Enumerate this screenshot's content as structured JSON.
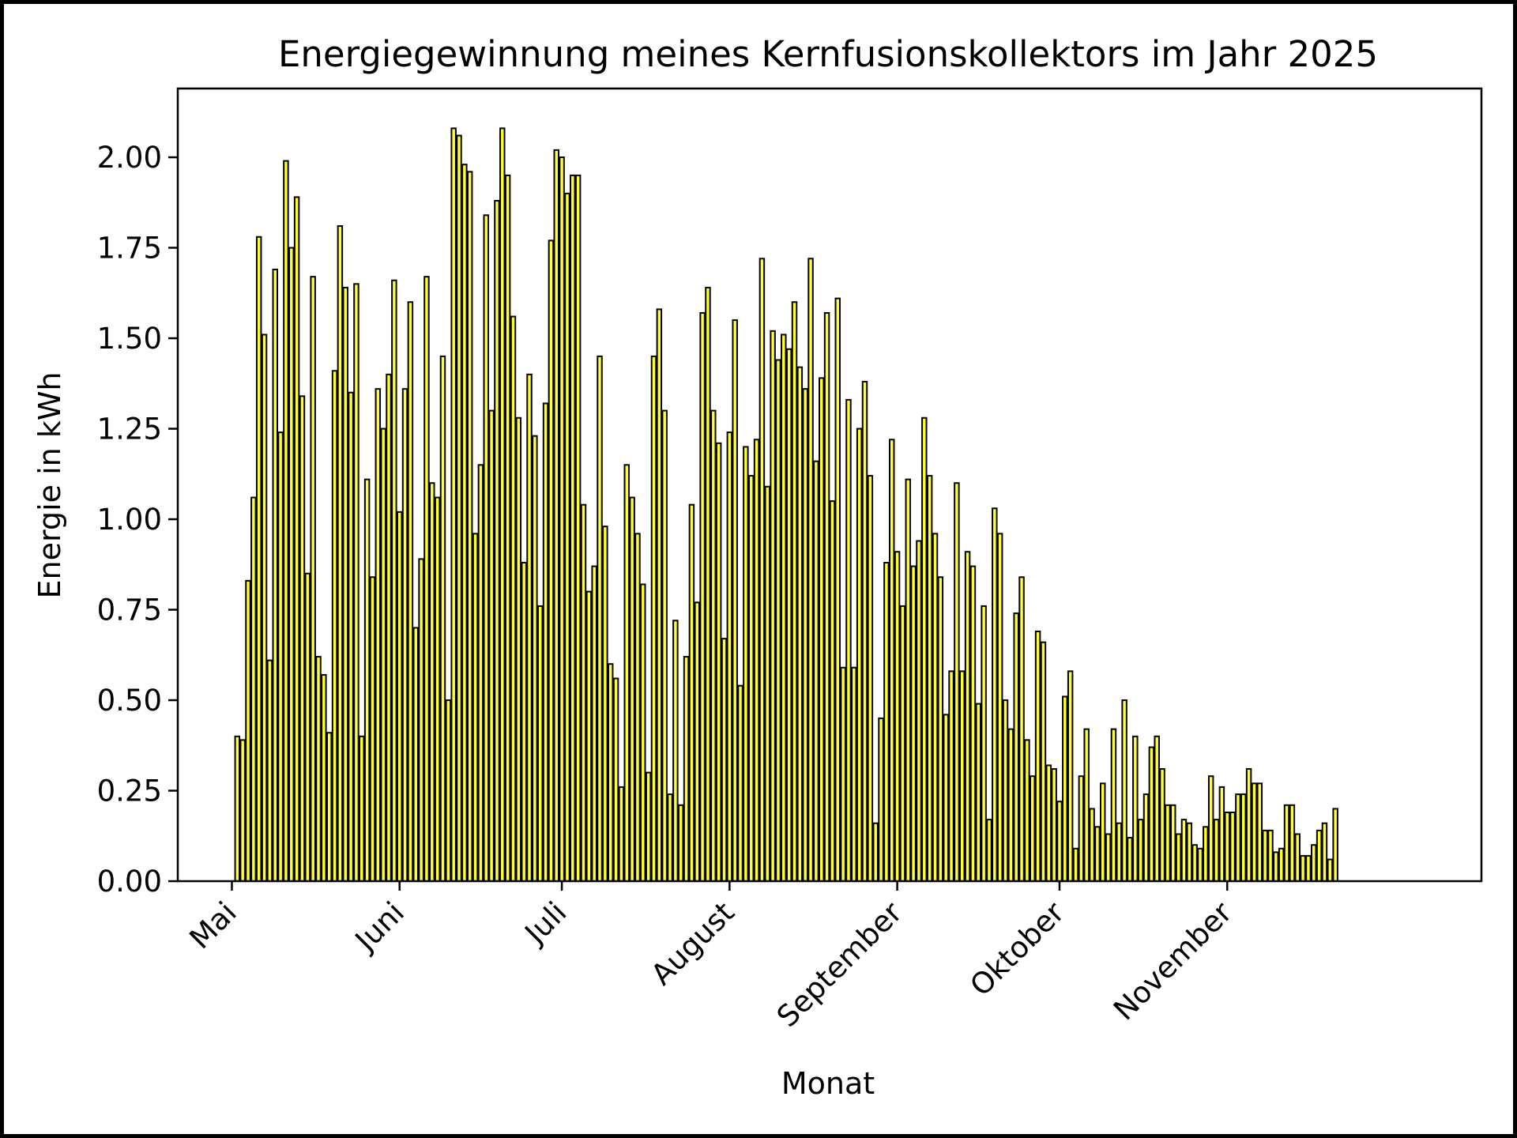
{
  "chart_data": {
    "type": "bar",
    "title": "Energiegewinnung meines Kernfusionskollektors im Jahr 2025",
    "xlabel": "Monat",
    "ylabel": "Energie in kWh",
    "x_start": "2025-05-01",
    "x_ticks": [
      "Mai",
      "Juni",
      "Juli",
      "August",
      "September",
      "Oktober",
      "November"
    ],
    "y_ticks": [
      "0.00",
      "0.25",
      "0.50",
      "0.75",
      "1.00",
      "1.25",
      "1.50",
      "1.75",
      "2.00"
    ],
    "xlim": [
      "2025-04-21",
      "2025-12-18"
    ],
    "ylim": [
      0,
      2.19
    ],
    "grid": false,
    "bar_color": "#ffff33",
    "edge_color": "#000000",
    "values": [
      0.0,
      0.4,
      0.39,
      0.83,
      1.06,
      1.78,
      1.51,
      0.61,
      1.69,
      1.24,
      1.99,
      1.75,
      1.89,
      1.34,
      0.85,
      1.67,
      0.62,
      0.57,
      0.41,
      1.41,
      1.81,
      1.64,
      1.35,
      1.65,
      0.4,
      1.11,
      0.84,
      1.36,
      1.25,
      1.4,
      1.66,
      1.02,
      1.36,
      1.6,
      0.7,
      0.89,
      1.67,
      1.1,
      1.06,
      1.45,
      0.5,
      2.08,
      2.06,
      1.98,
      1.96,
      0.96,
      1.15,
      1.84,
      1.3,
      1.88,
      2.08,
      1.95,
      1.56,
      1.28,
      0.88,
      1.4,
      1.23,
      0.76,
      1.32,
      1.77,
      2.02,
      2.0,
      1.9,
      1.95,
      1.95,
      1.04,
      0.8,
      0.87,
      1.45,
      0.98,
      0.6,
      0.56,
      0.26,
      1.15,
      1.06,
      0.96,
      0.82,
      0.3,
      1.45,
      1.58,
      1.3,
      0.24,
      0.72,
      0.21,
      0.62,
      1.04,
      0.77,
      1.57,
      1.64,
      1.3,
      1.21,
      0.67,
      1.24,
      1.55,
      0.54,
      1.2,
      1.12,
      1.22,
      1.72,
      1.09,
      1.52,
      1.44,
      1.51,
      1.47,
      1.6,
      1.42,
      1.36,
      1.72,
      1.16,
      1.39,
      1.57,
      1.05,
      1.61,
      0.59,
      1.33,
      0.59,
      1.25,
      1.38,
      1.12,
      0.16,
      0.45,
      0.88,
      1.22,
      0.91,
      0.76,
      1.11,
      0.87,
      0.94,
      1.28,
      1.12,
      0.96,
      0.84,
      0.46,
      0.58,
      1.1,
      0.58,
      0.91,
      0.87,
      0.49,
      0.76,
      0.17,
      1.03,
      0.96,
      0.5,
      0.42,
      0.74,
      0.84,
      0.39,
      0.29,
      0.69,
      0.66,
      0.32,
      0.31,
      0.22,
      0.51,
      0.58,
      0.09,
      0.29,
      0.42,
      0.2,
      0.15,
      0.27,
      0.13,
      0.42,
      0.16,
      0.5,
      0.12,
      0.4,
      0.17,
      0.24,
      0.37,
      0.4,
      0.31,
      0.21,
      0.21,
      0.13,
      0.17,
      0.16,
      0.1,
      0.09,
      0.15,
      0.29,
      0.17,
      0.26,
      0.19,
      0.19,
      0.24,
      0.24,
      0.31,
      0.27,
      0.27,
      0.14,
      0.14,
      0.08,
      0.09,
      0.21,
      0.21,
      0.13,
      0.07,
      0.07,
      0.1,
      0.14,
      0.16,
      0.06,
      0.2
    ]
  }
}
